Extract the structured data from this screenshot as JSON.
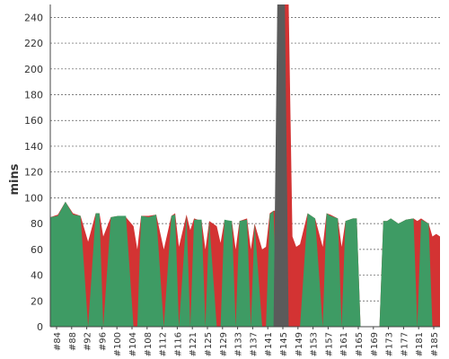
{
  "chart_data": {
    "type": "area",
    "ylabel": "mins",
    "ylim": [
      0,
      250
    ],
    "yticks": [
      0,
      20,
      40,
      60,
      80,
      100,
      120,
      140,
      160,
      180,
      200,
      220,
      240
    ],
    "grid": true,
    "x_ticks": [
      "#84",
      "#88",
      "#92",
      "#96",
      "#100",
      "#104",
      "#108",
      "#112",
      "#116",
      "#121",
      "#125",
      "#129",
      "#133",
      "#137",
      "#141",
      "#145",
      "#149",
      "#153",
      "#157",
      "#161",
      "#165",
      "#169",
      "#173",
      "#177",
      "#181",
      "#185"
    ],
    "x_start": 84,
    "x_end": 187,
    "series": [
      {
        "color": "#d33333",
        "x": [
          84,
          86,
          88,
          90,
          92,
          94,
          96,
          97,
          98,
          100,
          102,
          104,
          106,
          107,
          108,
          110,
          112,
          114,
          116,
          117,
          118,
          120,
          121,
          122,
          124,
          125,
          126,
          128,
          129,
          130,
          132,
          133,
          134,
          136,
          137,
          138,
          140,
          141,
          142,
          143,
          144,
          145,
          146,
          147,
          148,
          149,
          150,
          152,
          154,
          156,
          157,
          158,
          160,
          161,
          162,
          164,
          165,
          166,
          167,
          168,
          169,
          170,
          171,
          172,
          173,
          174,
          176,
          178,
          180,
          181,
          182,
          184,
          185,
          186,
          187
        ],
        "values": [
          85,
          87,
          97,
          88,
          86,
          66,
          88,
          88,
          70,
          85,
          86,
          85,
          78,
          60,
          86,
          86,
          87,
          60,
          86,
          88,
          62,
          87,
          75,
          84,
          82,
          60,
          82,
          78,
          65,
          82,
          82,
          60,
          82,
          84,
          60,
          80,
          60,
          62,
          88,
          90,
          90,
          255,
          255,
          250,
          70,
          62,
          64,
          88,
          84,
          62,
          88,
          87,
          84,
          62,
          82,
          84,
          84,
          0,
          0,
          0,
          0,
          0,
          0,
          82,
          82,
          84,
          80,
          83,
          84,
          82,
          84,
          80,
          70,
          72,
          70
        ]
      },
      {
        "color": "#3e9b64",
        "x": [
          84,
          86,
          88,
          90,
          92,
          94,
          96,
          97,
          98,
          100,
          102,
          104,
          106,
          107,
          108,
          110,
          112,
          114,
          116,
          117,
          118,
          120,
          121,
          122,
          124,
          125,
          126,
          128,
          129,
          130,
          132,
          133,
          134,
          136,
          137,
          138,
          140,
          141,
          142,
          143,
          144,
          145,
          146,
          147,
          148,
          149,
          150,
          152,
          154,
          156,
          157,
          158,
          160,
          161,
          162,
          164,
          165,
          166,
          167,
          168,
          169,
          170,
          171,
          172,
          173,
          174,
          176,
          178,
          180,
          181,
          182,
          184,
          185,
          186,
          187
        ],
        "values": [
          85,
          86,
          97,
          87,
          86,
          0,
          88,
          88,
          0,
          85,
          86,
          86,
          0,
          0,
          86,
          85,
          87,
          0,
          86,
          87,
          0,
          86,
          0,
          83,
          83,
          0,
          82,
          0,
          0,
          83,
          82,
          0,
          82,
          83,
          0,
          80,
          0,
          0,
          87,
          90,
          0,
          0,
          0,
          0,
          0,
          0,
          0,
          88,
          84,
          0,
          88,
          86,
          84,
          0,
          82,
          84,
          84,
          0,
          0,
          0,
          0,
          0,
          0,
          82,
          82,
          84,
          80,
          83,
          84,
          0,
          83,
          80,
          0,
          0,
          0
        ]
      },
      {
        "color": "#5b5b5b",
        "x": [
          143,
          144,
          145,
          146,
          147
        ],
        "values": [
          0,
          255,
          255,
          255,
          0
        ]
      }
    ]
  }
}
